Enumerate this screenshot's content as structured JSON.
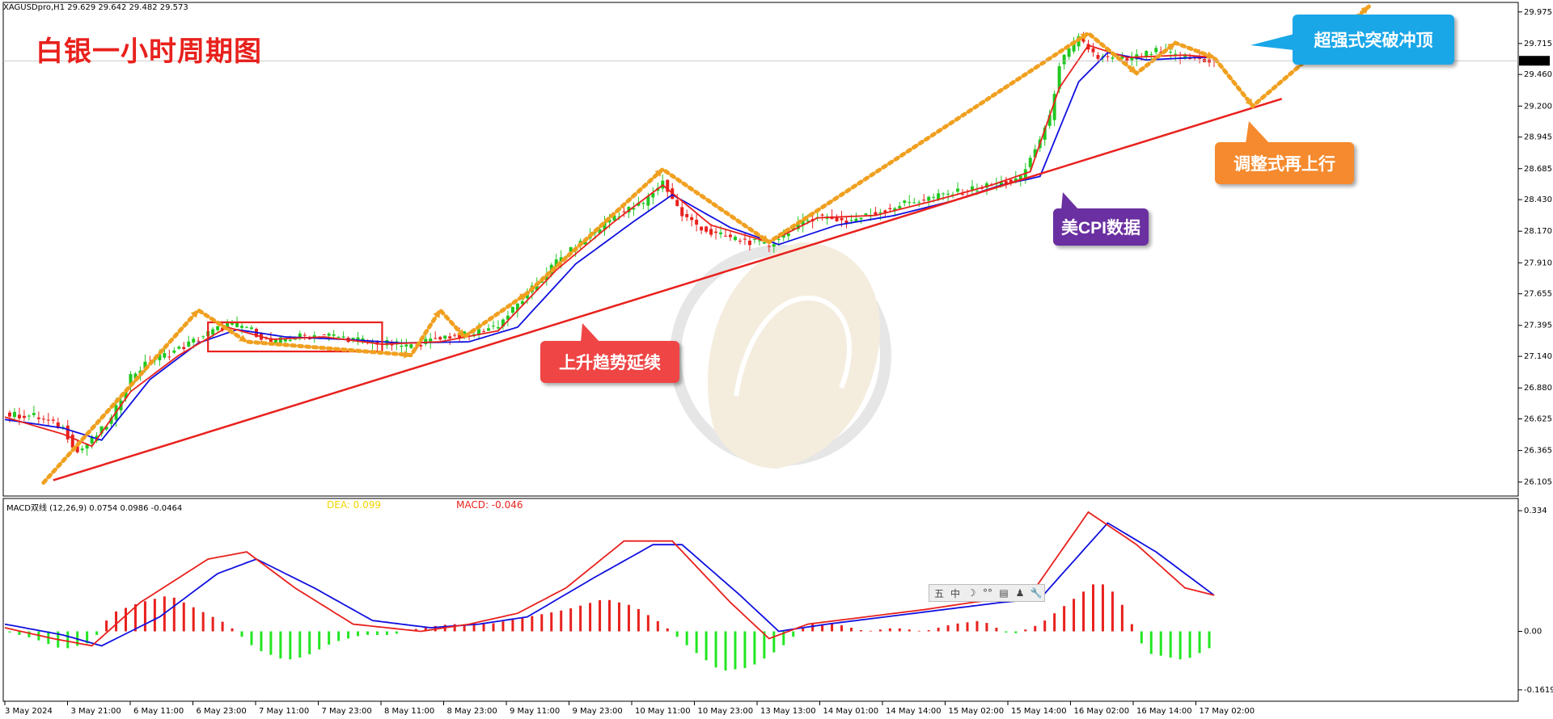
{
  "header": {
    "symbol_line": "XAGUSDpro,H1  29.629 29.642 29.482 29.573",
    "title": "白银一小时周期图"
  },
  "annotations": {
    "breakout_top": "超强式突破冲顶",
    "adjust_up": "调整式再上行",
    "cpi": "美CPI数据",
    "trend_continue": "上升趋势延续"
  },
  "indicator": {
    "label": "MACD双线 (12,26,9) 0.0754 0.0986 -0.0464",
    "dea": "DEA: 0.099",
    "macd": "MACD: -0.046"
  },
  "toolbar": {
    "items": [
      "五",
      "中",
      "☽",
      "°°",
      "▤",
      "♟",
      "🔧"
    ]
  },
  "colors": {
    "candle_up": "#20c820",
    "candle_down": "#e8211d",
    "ma_fast": "#e8211d",
    "ma_slow": "#1010e0",
    "trendline": "#e8211d",
    "arrow": "#f0a020",
    "callout_blue": "#1aa7e8",
    "callout_orange": "#f58a2e",
    "callout_purple": "#6a2fa0",
    "callout_red": "#ef4545"
  },
  "chart_data": [
    {
      "type": "candlestick",
      "title": "",
      "current_price": "29.573",
      "y_ticks": [
        "29.975",
        "29.715",
        "29.460",
        "29.200",
        "28.945",
        "28.685",
        "28.430",
        "28.170",
        "27.910",
        "27.655",
        "27.395",
        "27.140",
        "26.880",
        "26.625",
        "26.365",
        "26.105"
      ],
      "ylim": [
        26.05,
        30.02
      ],
      "x_ticks": [
        "3 May 2024",
        "3 May 21:00",
        "6 May 11:00",
        "6 May 23:00",
        "7 May 11:00",
        "7 May 23:00",
        "8 May 11:00",
        "8 May 23:00",
        "9 May 11:00",
        "9 May 23:00",
        "10 May 11:00",
        "10 May 23:00",
        "13 May 13:00",
        "14 May 01:00",
        "14 May 14:00",
        "15 May 02:00",
        "15 May 14:00",
        "16 May 02:00",
        "16 May 14:00",
        "17 May 02:00"
      ],
      "close_path": [
        [
          0,
          26.66
        ],
        [
          6,
          26.65
        ],
        [
          12,
          26.55
        ],
        [
          15,
          26.35
        ],
        [
          18,
          26.45
        ],
        [
          22,
          26.62
        ],
        [
          26,
          26.98
        ],
        [
          30,
          27.1
        ],
        [
          36,
          27.2
        ],
        [
          42,
          27.33
        ],
        [
          46,
          27.4
        ],
        [
          50,
          27.38
        ],
        [
          55,
          27.25
        ],
        [
          60,
          27.3
        ],
        [
          66,
          27.32
        ],
        [
          72,
          27.28
        ],
        [
          78,
          27.25
        ],
        [
          84,
          27.22
        ],
        [
          90,
          27.3
        ],
        [
          96,
          27.32
        ],
        [
          102,
          27.4
        ],
        [
          108,
          27.65
        ],
        [
          114,
          27.92
        ],
        [
          120,
          28.1
        ],
        [
          126,
          28.3
        ],
        [
          132,
          28.4
        ],
        [
          136,
          28.58
        ],
        [
          140,
          28.3
        ],
        [
          146,
          28.15
        ],
        [
          152,
          28.1
        ],
        [
          158,
          28.05
        ],
        [
          162,
          28.18
        ],
        [
          168,
          28.3
        ],
        [
          174,
          28.25
        ],
        [
          180,
          28.32
        ],
        [
          186,
          28.4
        ],
        [
          192,
          28.45
        ],
        [
          198,
          28.5
        ],
        [
          204,
          28.55
        ],
        [
          210,
          28.6
        ],
        [
          216,
          29.1
        ],
        [
          218,
          29.55
        ],
        [
          222,
          29.75
        ],
        [
          226,
          29.6
        ],
        [
          232,
          29.58
        ],
        [
          238,
          29.65
        ],
        [
          244,
          29.6
        ],
        [
          250,
          29.57
        ]
      ],
      "ma_fast_path": [
        [
          0,
          26.64
        ],
        [
          12,
          26.5
        ],
        [
          18,
          26.4
        ],
        [
          26,
          26.85
        ],
        [
          36,
          27.15
        ],
        [
          46,
          27.38
        ],
        [
          55,
          27.28
        ],
        [
          66,
          27.3
        ],
        [
          78,
          27.24
        ],
        [
          90,
          27.26
        ],
        [
          102,
          27.35
        ],
        [
          114,
          27.85
        ],
        [
          126,
          28.25
        ],
        [
          136,
          28.55
        ],
        [
          146,
          28.22
        ],
        [
          158,
          28.08
        ],
        [
          168,
          28.28
        ],
        [
          180,
          28.3
        ],
        [
          192,
          28.42
        ],
        [
          204,
          28.55
        ],
        [
          212,
          28.66
        ],
        [
          218,
          29.35
        ],
        [
          224,
          29.7
        ],
        [
          232,
          29.6
        ],
        [
          244,
          29.62
        ],
        [
          250,
          29.6
        ]
      ],
      "ma_slow_path": [
        [
          0,
          26.62
        ],
        [
          12,
          26.55
        ],
        [
          20,
          26.45
        ],
        [
          30,
          26.95
        ],
        [
          40,
          27.25
        ],
        [
          48,
          27.36
        ],
        [
          58,
          27.3
        ],
        [
          70,
          27.28
        ],
        [
          82,
          27.25
        ],
        [
          96,
          27.26
        ],
        [
          106,
          27.38
        ],
        [
          118,
          27.9
        ],
        [
          130,
          28.25
        ],
        [
          138,
          28.47
        ],
        [
          150,
          28.2
        ],
        [
          160,
          28.06
        ],
        [
          172,
          28.22
        ],
        [
          184,
          28.3
        ],
        [
          196,
          28.42
        ],
        [
          206,
          28.55
        ],
        [
          214,
          28.62
        ],
        [
          222,
          29.4
        ],
        [
          228,
          29.64
        ],
        [
          236,
          29.58
        ],
        [
          246,
          29.6
        ],
        [
          250,
          29.6
        ]
      ],
      "trendline": [
        [
          10,
          26.12
        ],
        [
          264,
          29.26
        ]
      ],
      "consolidation_box": {
        "x": [
          42,
          78
        ],
        "y": [
          27.18,
          27.42
        ]
      },
      "arrow_paths": [
        [
          [
            8,
            26.1
          ],
          [
            40,
            27.52
          ],
          [
            50,
            27.26
          ],
          [
            84,
            27.15
          ],
          [
            90,
            27.52
          ],
          [
            95,
            27.3
          ],
          [
            108,
            27.66
          ],
          [
            136,
            28.68
          ],
          [
            158,
            28.08
          ],
          [
            224,
            29.8
          ],
          [
            234,
            29.47
          ],
          [
            242,
            29.72
          ],
          [
            250,
            29.6
          ],
          [
            258,
            29.2
          ],
          [
            282,
            30.02
          ]
        ]
      ]
    },
    {
      "type": "line",
      "title": "",
      "y_ticks": [
        "0.334",
        "0.00",
        "-0.1619"
      ],
      "ylim": [
        -0.18,
        0.35
      ],
      "series": [
        {
          "name": "MACD",
          "values_path": [
            [
              0,
              0.01
            ],
            [
              10,
              -0.02
            ],
            [
              18,
              -0.04
            ],
            [
              28,
              0.08
            ],
            [
              42,
              0.2
            ],
            [
              50,
              0.22
            ],
            [
              60,
              0.12
            ],
            [
              72,
              0.02
            ],
            [
              86,
              0.0
            ],
            [
              96,
              0.02
            ],
            [
              106,
              0.05
            ],
            [
              116,
              0.12
            ],
            [
              128,
              0.25
            ],
            [
              138,
              0.25
            ],
            [
              150,
              0.08
            ],
            [
              158,
              -0.02
            ],
            [
              166,
              0.02
            ],
            [
              178,
              0.04
            ],
            [
              190,
              0.06
            ],
            [
              200,
              0.08
            ],
            [
              212,
              0.1
            ],
            [
              224,
              0.33
            ],
            [
              234,
              0.24
            ],
            [
              244,
              0.12
            ],
            [
              250,
              0.1
            ]
          ]
        },
        {
          "name": "DEA",
          "values_path": [
            [
              0,
              0.02
            ],
            [
              12,
              -0.01
            ],
            [
              20,
              -0.04
            ],
            [
              32,
              0.04
            ],
            [
              44,
              0.16
            ],
            [
              52,
              0.2
            ],
            [
              64,
              0.12
            ],
            [
              76,
              0.03
            ],
            [
              88,
              0.01
            ],
            [
              98,
              0.02
            ],
            [
              108,
              0.04
            ],
            [
              122,
              0.15
            ],
            [
              134,
              0.24
            ],
            [
              140,
              0.24
            ],
            [
              152,
              0.1
            ],
            [
              160,
              0.0
            ],
            [
              170,
              0.02
            ],
            [
              182,
              0.04
            ],
            [
              194,
              0.06
            ],
            [
              206,
              0.08
            ],
            [
              214,
              0.09
            ],
            [
              228,
              0.3
            ],
            [
              238,
              0.22
            ],
            [
              248,
              0.12
            ],
            [
              250,
              0.1
            ]
          ]
        }
      ],
      "histogram_path": [
        [
          0,
          0.0
        ],
        [
          6,
          -0.02
        ],
        [
          12,
          -0.05
        ],
        [
          18,
          -0.03
        ],
        [
          22,
          0.05
        ],
        [
          28,
          0.08
        ],
        [
          34,
          0.1
        ],
        [
          40,
          0.06
        ],
        [
          46,
          0.02
        ],
        [
          52,
          -0.05
        ],
        [
          58,
          -0.08
        ],
        [
          62,
          -0.07
        ],
        [
          68,
          -0.03
        ],
        [
          74,
          -0.01
        ],
        [
          80,
          -0.01
        ],
        [
          86,
          0.01
        ],
        [
          92,
          0.02
        ],
        [
          100,
          0.02
        ],
        [
          108,
          0.04
        ],
        [
          116,
          0.06
        ],
        [
          124,
          0.09
        ],
        [
          130,
          0.07
        ],
        [
          136,
          0.02
        ],
        [
          142,
          -0.05
        ],
        [
          148,
          -0.11
        ],
        [
          154,
          -0.1
        ],
        [
          160,
          -0.05
        ],
        [
          166,
          0.02
        ],
        [
          172,
          0.02
        ],
        [
          178,
          0.0
        ],
        [
          184,
          0.01
        ],
        [
          190,
          0.0
        ],
        [
          196,
          0.02
        ],
        [
          202,
          0.03
        ],
        [
          208,
          -0.01
        ],
        [
          214,
          0.02
        ],
        [
          220,
          0.08
        ],
        [
          226,
          0.14
        ],
        [
          230,
          0.1
        ],
        [
          236,
          -0.06
        ],
        [
          244,
          -0.08
        ],
        [
          250,
          -0.04
        ]
      ]
    }
  ]
}
